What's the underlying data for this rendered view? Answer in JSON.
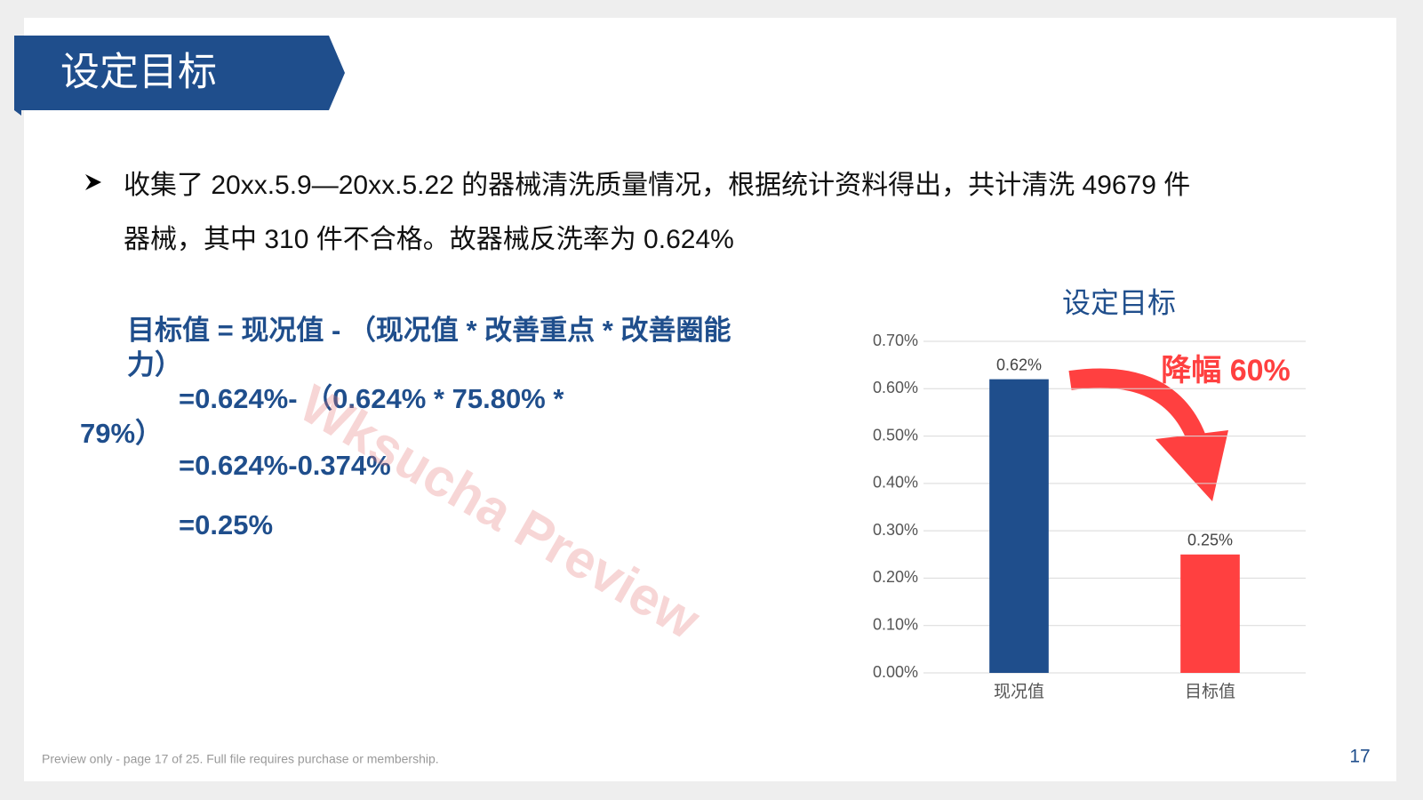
{
  "header": {
    "title": "设定目标"
  },
  "bullet": {
    "lines": [
      "收集了 20xx.5.9—20xx.5.22 的器械清洗质量情况，根据统计资料得出，共计清洗 49679 件",
      "器械，其中 310 件不合格。故器械反洗率为 0.624%"
    ]
  },
  "formula": {
    "lines": [
      "目标值 = 现况值 - （现况值  *  改善重点  *  改善圈能",
      "力）",
      "=0.624%- （0.624% * 75.80% *",
      "79%）",
      "=0.624%-0.374%",
      "=0.25%"
    ]
  },
  "watermark": "Wksucha Preview",
  "footer": {
    "note": "Preview only - page 17 of 25. Full file requires purchase or membership.",
    "page_number": "17"
  },
  "chart_data": {
    "type": "bar",
    "title": "设定目标",
    "categories": [
      "现况值",
      "目标值"
    ],
    "values": [
      0.62,
      0.25
    ],
    "value_labels": [
      "0.62%",
      "0.25%"
    ],
    "colors": [
      "#1f4e8c",
      "#ff4040"
    ],
    "ylim": [
      0,
      0.7
    ],
    "yticks": [
      {
        "value": 0,
        "label": "0.00%"
      },
      {
        "value": 0.1,
        "label": "0.10%"
      },
      {
        "value": 0.2,
        "label": "0.20%"
      },
      {
        "value": 0.3,
        "label": "0.30%"
      },
      {
        "value": 0.4,
        "label": "0.40%"
      },
      {
        "value": 0.5,
        "label": "0.50%"
      },
      {
        "value": 0.6,
        "label": "0.60%"
      },
      {
        "value": 0.7,
        "label": "0.70%"
      }
    ],
    "grid": true,
    "annotation": "降幅 60%"
  }
}
